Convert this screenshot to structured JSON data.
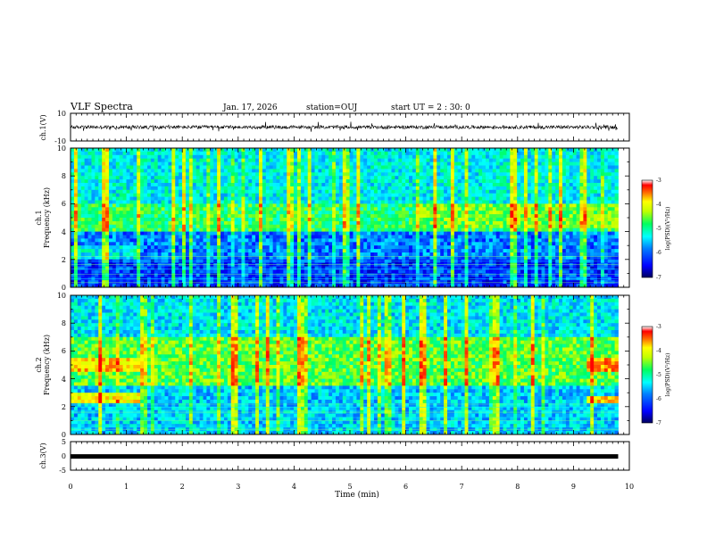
{
  "header": {
    "title": "VLF Spectra",
    "date": "Jan. 17, 2026",
    "station": "station=OUJ",
    "start_ut": "start UT =  2 : 30: 0"
  },
  "colors": {
    "colormap": [
      "#000080",
      "#0000ff",
      "#0080ff",
      "#00ffff",
      "#00ff80",
      "#80ff00",
      "#ffff00",
      "#ff8000",
      "#ff0000",
      "#ffffff"
    ],
    "waveform": "#000000"
  },
  "chart_data": [
    {
      "type": "line",
      "name": "ch1-waveform",
      "ylabel": "ch.1(V)",
      "ylim": [
        -10,
        10
      ],
      "yticks": [
        "10",
        "-10"
      ],
      "xlim": [
        0,
        10
      ],
      "amplitude": 0.7,
      "x": [
        0,
        1,
        2,
        3,
        4,
        5,
        6,
        7,
        8,
        9,
        9.8
      ],
      "y": [
        0,
        0,
        0,
        0,
        0,
        0,
        0,
        0,
        0,
        0,
        0
      ]
    },
    {
      "type": "heatmap",
      "name": "ch1-spectrogram",
      "ylabel_top": "ch.1",
      "ylabel": "Frequency (kHz)",
      "ylim": [
        0,
        10
      ],
      "yticks": [
        "0",
        "2",
        "4",
        "6",
        "8",
        "10"
      ],
      "xlim": [
        0,
        10
      ],
      "data_end_min": 9.8,
      "colorbar": {
        "label": "log(PSD)(V²/Hz)",
        "range": [
          -7,
          -3
        ],
        "ticks": [
          "-3",
          "-4",
          "-5",
          "-6",
          "-7"
        ]
      }
    },
    {
      "type": "heatmap",
      "name": "ch2-spectrogram",
      "ylabel_top": "ch.2",
      "ylabel": "Frequency (kHz)",
      "ylim": [
        0,
        10
      ],
      "yticks": [
        "0",
        "2",
        "4",
        "6",
        "8",
        "10"
      ],
      "xlim": [
        0,
        10
      ],
      "data_end_min": 9.8,
      "colorbar": {
        "label": "log(PSD)(V²/Hz)",
        "range": [
          -7,
          -3
        ],
        "ticks": [
          "-3",
          "-4",
          "-5",
          "-6",
          "-7"
        ]
      }
    },
    {
      "type": "line",
      "name": "ch3-waveform",
      "ylabel": "ch.3(V)",
      "ylim": [
        -5,
        5
      ],
      "yticks": [
        "5",
        "0",
        "-5"
      ],
      "xlim": [
        0,
        10
      ],
      "x": [
        0,
        9.8
      ],
      "y": [
        -0.2,
        -0.2
      ]
    }
  ],
  "xaxis": {
    "label": "Time (min)",
    "ticks": [
      "0",
      "1",
      "2",
      "3",
      "4",
      "5",
      "6",
      "7",
      "8",
      "9",
      "10"
    ]
  }
}
